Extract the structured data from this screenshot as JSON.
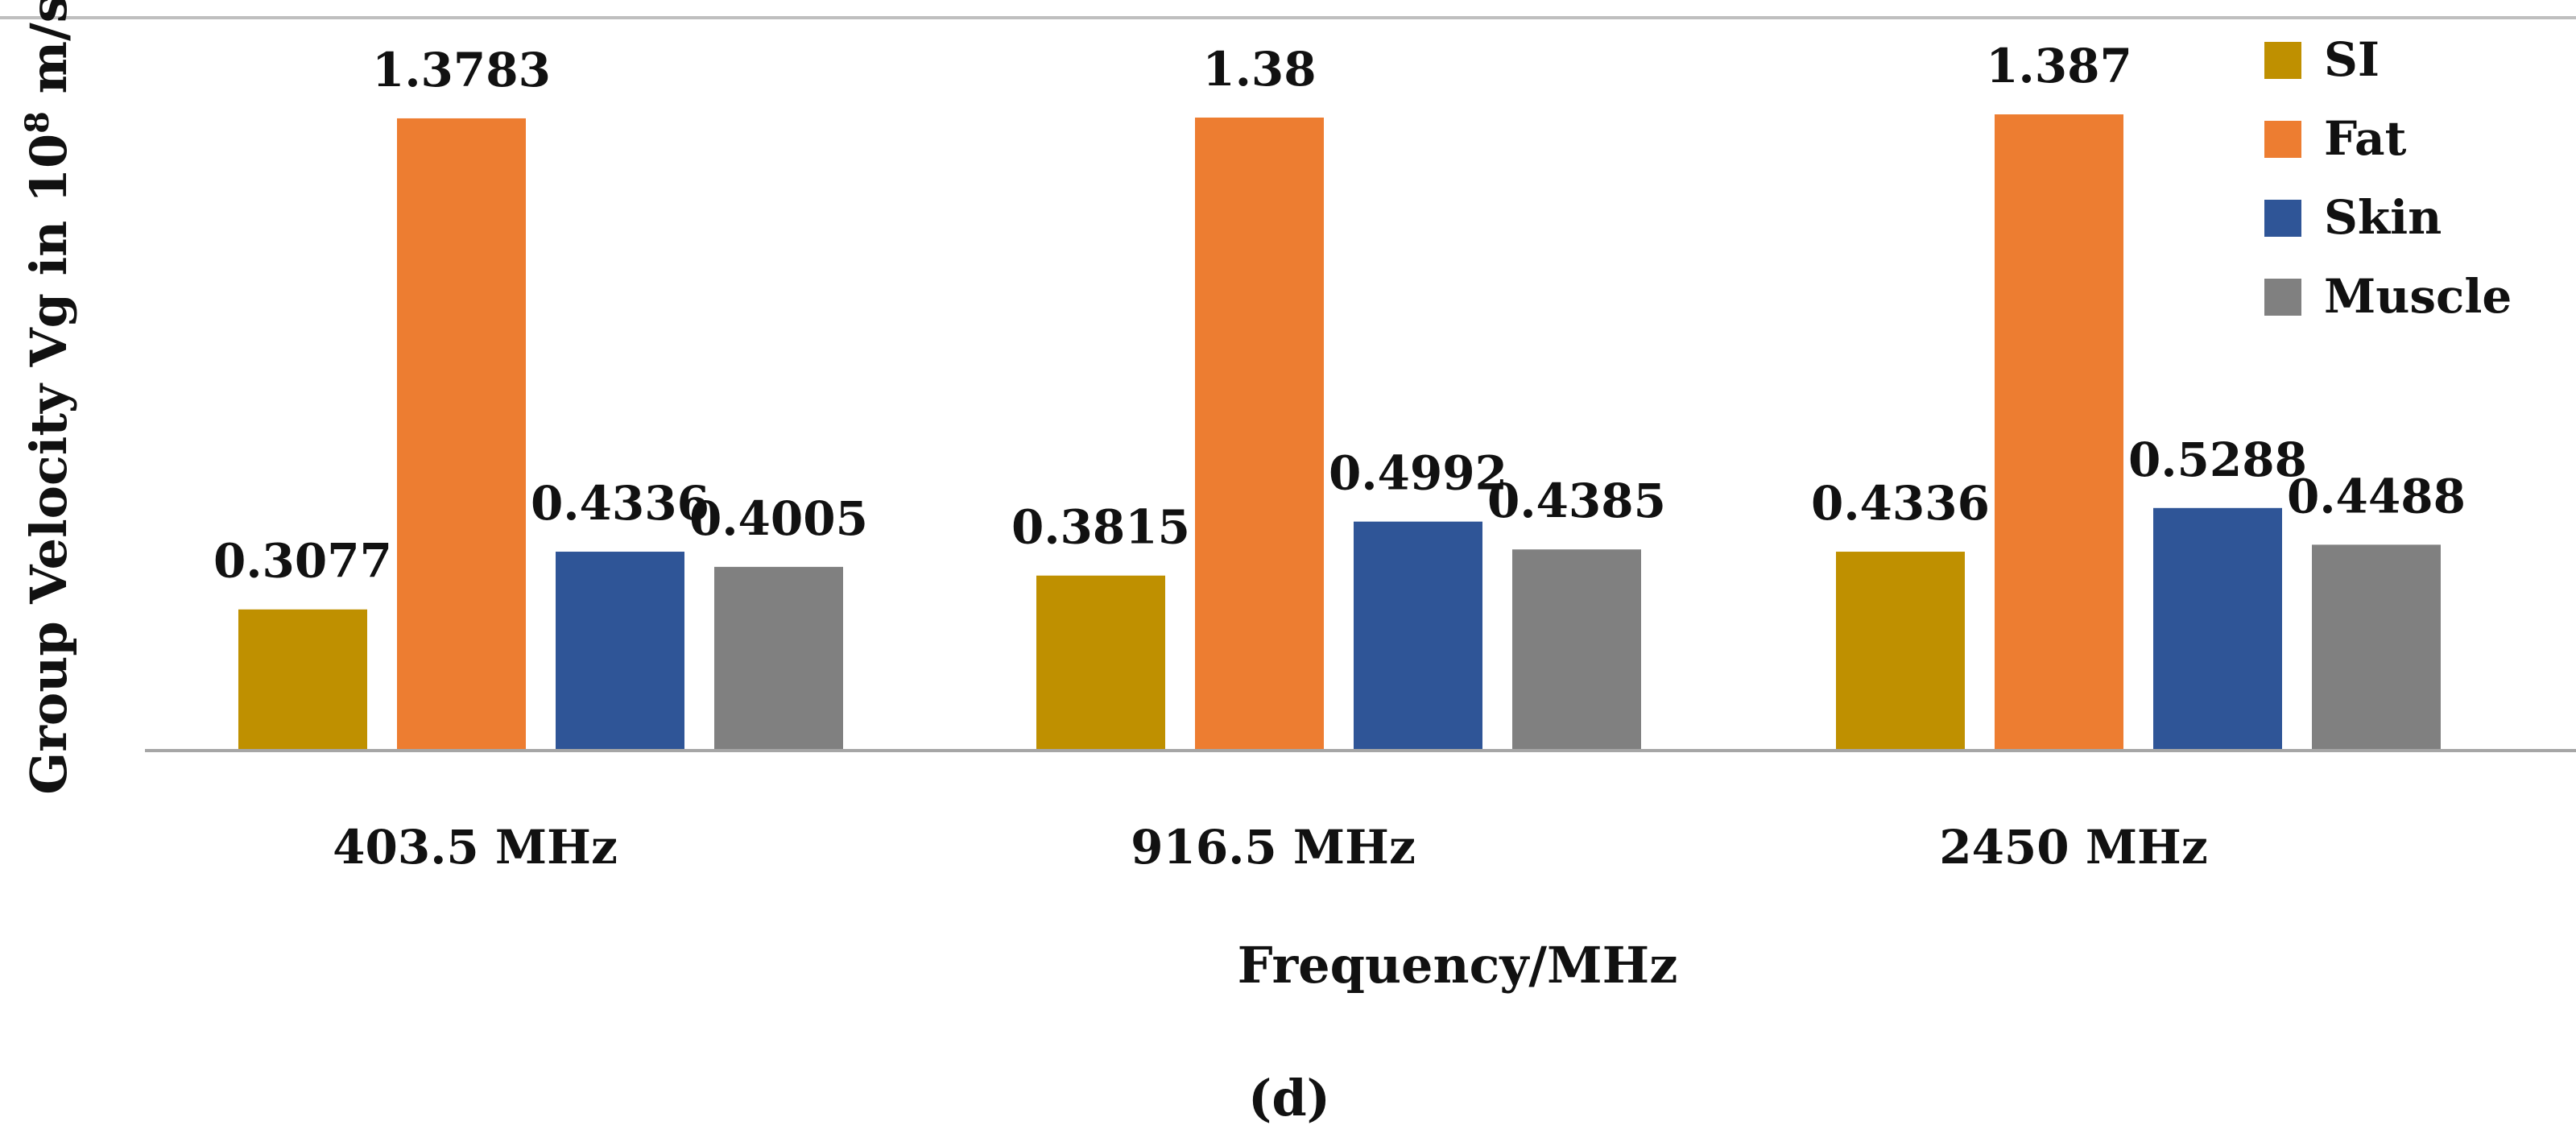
{
  "chart_data": {
    "type": "bar",
    "title": "",
    "xlabel": "Frequency/MHz",
    "ylabel_prefix": "Group Velocity Vg in 10",
    "ylabel_superscript": "8",
    "ylabel_suffix": " m/s",
    "caption": "(d)",
    "categories": [
      "403.5 MHz",
      "916.5 MHz",
      "2450 MHz"
    ],
    "series": [
      {
        "name": "SI",
        "color": "#BF9000",
        "values": [
          0.3077,
          0.3815,
          0.4336
        ],
        "labels": [
          "0.3077",
          "0.3815",
          "0.4336"
        ]
      },
      {
        "name": "Fat",
        "color": "#ED7D31",
        "values": [
          1.3783,
          1.38,
          1.387
        ],
        "labels": [
          "1.3783",
          "1.38",
          "1.387"
        ]
      },
      {
        "name": "Skin",
        "color": "#2F5597",
        "values": [
          0.4336,
          0.4992,
          0.5288
        ],
        "labels": [
          "0.4336",
          "0.4992",
          "0.5288"
        ]
      },
      {
        "name": "Muscle",
        "color": "#808080",
        "values": [
          0.4005,
          0.4385,
          0.4488
        ],
        "labels": [
          "0.4005",
          "0.4385",
          "0.4488"
        ]
      }
    ],
    "ylim": [
      0,
      1.387
    ],
    "grid": false,
    "legend_position": "top-right",
    "axis_color": "#A6A6A6"
  }
}
